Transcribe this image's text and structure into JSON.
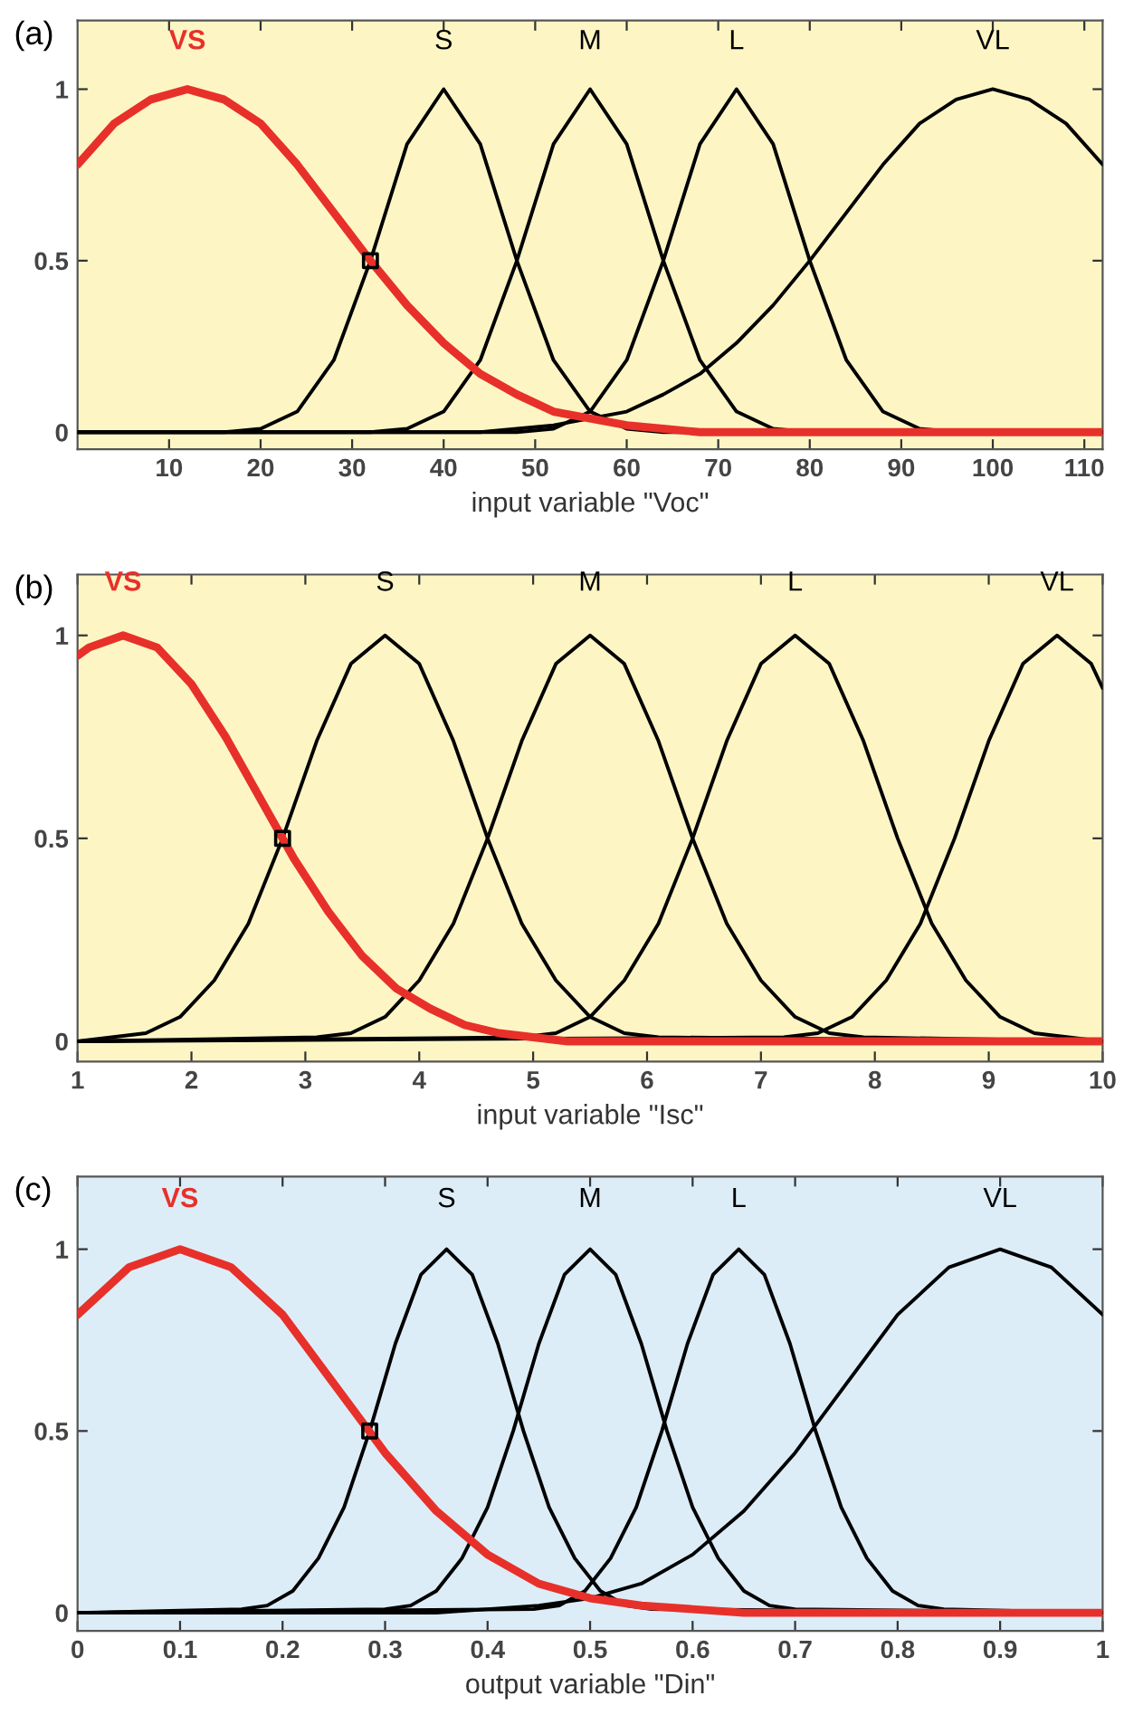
{
  "chart_data": [
    {
      "type": "line",
      "annotations": [
        "(a)"
      ],
      "xlabel": "input variable \"Voc\"",
      "xlim": [
        0,
        112
      ],
      "ylim": [
        -0.05,
        1.2
      ],
      "xticks": [
        10,
        20,
        30,
        40,
        50,
        60,
        70,
        80,
        90,
        100,
        110
      ],
      "yticks": [
        0,
        0.5,
        1
      ],
      "grid": false,
      "legend": false,
      "marker": "none",
      "line_style": "solid",
      "x": [
        0,
        4,
        8,
        12,
        16,
        20,
        24,
        28,
        32,
        36,
        40,
        44,
        48,
        52,
        56,
        60,
        64,
        68,
        72,
        76,
        80,
        84,
        88,
        92,
        96,
        100,
        104,
        108,
        112
      ],
      "series": [
        {
          "name": "VS",
          "color": "#e8302a",
          "values": [
            0.78,
            0.9,
            0.97,
            1,
            0.97,
            0.9,
            0.78,
            0.64,
            0.5,
            0.37,
            0.26,
            0.17,
            0.11,
            0.06,
            0.04,
            0.02,
            0.01,
            0,
            0,
            0,
            0,
            0,
            0,
            0,
            0,
            0,
            0,
            0,
            0
          ]
        },
        {
          "name": "S",
          "color": "#000000",
          "values": [
            0,
            0,
            0,
            0,
            0,
            0.01,
            0.06,
            0.21,
            0.5,
            0.84,
            1,
            0.84,
            0.5,
            0.21,
            0.06,
            0.01,
            0,
            0,
            0,
            0,
            0,
            0,
            0,
            0,
            0,
            0,
            0,
            0,
            0
          ]
        },
        {
          "name": "M",
          "color": "#000000",
          "values": [
            0,
            0,
            0,
            0,
            0,
            0,
            0,
            0,
            0,
            0.01,
            0.06,
            0.21,
            0.5,
            0.84,
            1,
            0.84,
            0.5,
            0.21,
            0.06,
            0.01,
            0,
            0,
            0,
            0,
            0,
            0,
            0,
            0,
            0
          ]
        },
        {
          "name": "L",
          "color": "#000000",
          "values": [
            0,
            0,
            0,
            0,
            0,
            0,
            0,
            0,
            0,
            0,
            0,
            0,
            0,
            0.01,
            0.06,
            0.21,
            0.5,
            0.84,
            1,
            0.84,
            0.5,
            0.21,
            0.06,
            0.01,
            0,
            0,
            0,
            0,
            0
          ]
        },
        {
          "name": "VL",
          "color": "#000000",
          "values": [
            0,
            0,
            0,
            0,
            0,
            0,
            0,
            0,
            0,
            0,
            0,
            0,
            0.01,
            0.02,
            0.04,
            0.06,
            0.11,
            0.17,
            0.26,
            0.37,
            0.5,
            0.64,
            0.78,
            0.9,
            0.97,
            1,
            0.97,
            0.9,
            0.78
          ]
        },
        {
          "type": "scatter",
          "marker": "square",
          "color": "#000000",
          "x": [
            32
          ],
          "values": [
            0.5
          ]
        }
      ]
    },
    {
      "type": "line",
      "annotations": [
        "(b)"
      ],
      "xlabel": "input variable \"Isc\"",
      "xlim": [
        1,
        10
      ],
      "ylim": [
        -0.05,
        1.15
      ],
      "xticks": [
        1,
        2,
        3,
        4,
        5,
        6,
        7,
        8,
        9,
        10
      ],
      "yticks": [
        0,
        0.5,
        1
      ],
      "grid": false,
      "legend": false,
      "marker": "none",
      "line_style": "solid",
      "series": [
        {
          "name": "VS",
          "color": "#e8302a",
          "x": [
            1.0,
            1.1,
            1.4,
            1.7,
            2.0,
            2.3,
            2.6,
            2.9,
            3.2,
            3.5,
            3.8,
            4.1,
            4.4,
            4.7,
            5.0,
            5.3,
            10
          ],
          "values": [
            0.95,
            0.97,
            1,
            0.97,
            0.88,
            0.75,
            0.6,
            0.45,
            0.32,
            0.21,
            0.13,
            0.08,
            0.04,
            0.02,
            0.01,
            0,
            0
          ]
        },
        {
          "name": "S",
          "color": "#000000",
          "x": [
            1,
            1.3,
            1.6,
            1.9,
            2.2,
            2.5,
            2.8,
            3.1,
            3.4,
            3.7,
            4.0,
            4.3,
            4.6,
            4.9,
            5.2,
            5.5,
            5.8,
            6.1,
            10
          ],
          "values": [
            0,
            0.01,
            0.02,
            0.06,
            0.15,
            0.29,
            0.5,
            0.74,
            0.93,
            1,
            0.93,
            0.74,
            0.5,
            0.29,
            0.15,
            0.06,
            0.02,
            0.01,
            0
          ]
        },
        {
          "name": "M",
          "color": "#000000",
          "x": [
            1,
            3.1,
            3.4,
            3.7,
            4.0,
            4.3,
            4.6,
            4.9,
            5.2,
            5.5,
            5.8,
            6.1,
            6.4,
            6.7,
            7.0,
            7.3,
            7.6,
            7.9,
            10
          ],
          "values": [
            0,
            0.01,
            0.02,
            0.06,
            0.15,
            0.29,
            0.5,
            0.74,
            0.93,
            1,
            0.93,
            0.74,
            0.5,
            0.29,
            0.15,
            0.06,
            0.02,
            0.01,
            0
          ]
        },
        {
          "name": "L",
          "color": "#000000",
          "x": [
            1,
            4.9,
            5.2,
            5.5,
            5.8,
            6.1,
            6.4,
            6.7,
            7.0,
            7.3,
            7.6,
            7.9,
            8.2,
            8.5,
            8.8,
            9.1,
            9.4,
            9.7,
            10
          ],
          "values": [
            0,
            0.01,
            0.02,
            0.06,
            0.15,
            0.29,
            0.5,
            0.74,
            0.93,
            1,
            0.93,
            0.74,
            0.5,
            0.29,
            0.15,
            0.06,
            0.02,
            0.01,
            0
          ]
        },
        {
          "name": "VL",
          "color": "#000000",
          "x": [
            1,
            7.2,
            7.5,
            7.8,
            8.1,
            8.4,
            8.7,
            9.0,
            9.3,
            9.6,
            9.9,
            10.0
          ],
          "values": [
            0,
            0.01,
            0.02,
            0.06,
            0.15,
            0.29,
            0.5,
            0.74,
            0.93,
            1,
            0.93,
            0.87
          ]
        },
        {
          "type": "scatter",
          "marker": "square",
          "color": "#000000",
          "x": [
            2.8
          ],
          "values": [
            0.5
          ]
        }
      ]
    },
    {
      "type": "line",
      "annotations": [
        "(c)"
      ],
      "xlabel": "output variable \"Din\"",
      "xlim": [
        0,
        1
      ],
      "ylim": [
        -0.05,
        1.2
      ],
      "xticks": [
        0,
        0.1,
        0.2,
        0.3,
        0.4,
        0.5,
        0.6,
        0.7,
        0.8,
        0.9,
        1
      ],
      "yticks": [
        0,
        0.5,
        1
      ],
      "grid": false,
      "legend": false,
      "marker": "none",
      "line_style": "solid",
      "series": [
        {
          "name": "VS",
          "color": "#e8302a",
          "x": [
            0,
            0.05,
            0.1,
            0.15,
            0.2,
            0.25,
            0.3,
            0.35,
            0.4,
            0.45,
            0.5,
            0.55,
            0.6,
            0.65,
            1
          ],
          "values": [
            0.82,
            0.95,
            1,
            0.95,
            0.82,
            0.63,
            0.44,
            0.28,
            0.16,
            0.08,
            0.04,
            0.02,
            0.01,
            0,
            0
          ]
        },
        {
          "name": "S",
          "color": "#000000",
          "x": [
            0,
            0.16,
            0.185,
            0.21,
            0.235,
            0.26,
            0.285,
            0.31,
            0.335,
            0.36,
            0.385,
            0.41,
            0.435,
            0.46,
            0.485,
            0.51,
            0.535,
            0.56,
            1
          ],
          "values": [
            0,
            0.01,
            0.02,
            0.06,
            0.15,
            0.29,
            0.5,
            0.74,
            0.93,
            1,
            0.93,
            0.74,
            0.5,
            0.29,
            0.15,
            0.06,
            0.02,
            0.01,
            0
          ]
        },
        {
          "name": "M",
          "color": "#000000",
          "x": [
            0,
            0.3,
            0.325,
            0.35,
            0.375,
            0.4,
            0.425,
            0.45,
            0.475,
            0.5,
            0.525,
            0.55,
            0.575,
            0.6,
            0.625,
            0.65,
            0.675,
            0.7,
            1
          ],
          "values": [
            0,
            0.01,
            0.02,
            0.06,
            0.15,
            0.29,
            0.5,
            0.74,
            0.93,
            1,
            0.93,
            0.74,
            0.5,
            0.29,
            0.15,
            0.06,
            0.02,
            0.01,
            0
          ]
        },
        {
          "name": "L",
          "color": "#000000",
          "x": [
            0,
            0.445,
            0.47,
            0.495,
            0.52,
            0.545,
            0.57,
            0.595,
            0.62,
            0.645,
            0.67,
            0.695,
            0.72,
            0.745,
            0.77,
            0.795,
            0.82,
            0.845,
            1
          ],
          "values": [
            0,
            0.01,
            0.02,
            0.06,
            0.15,
            0.29,
            0.5,
            0.74,
            0.93,
            1,
            0.93,
            0.74,
            0.5,
            0.29,
            0.15,
            0.06,
            0.02,
            0.01,
            0
          ]
        },
        {
          "name": "VL",
          "color": "#000000",
          "x": [
            0,
            0.35,
            0.4,
            0.45,
            0.5,
            0.55,
            0.6,
            0.65,
            0.7,
            0.75,
            0.8,
            0.85,
            0.9,
            0.95,
            1.0
          ],
          "values": [
            0,
            0,
            0.01,
            0.02,
            0.04,
            0.08,
            0.16,
            0.28,
            0.44,
            0.63,
            0.82,
            0.95,
            1,
            0.95,
            0.82
          ]
        },
        {
          "type": "scatter",
          "marker": "square",
          "color": "#000000",
          "x": [
            0.285
          ],
          "values": [
            0.5
          ]
        }
      ]
    }
  ]
}
